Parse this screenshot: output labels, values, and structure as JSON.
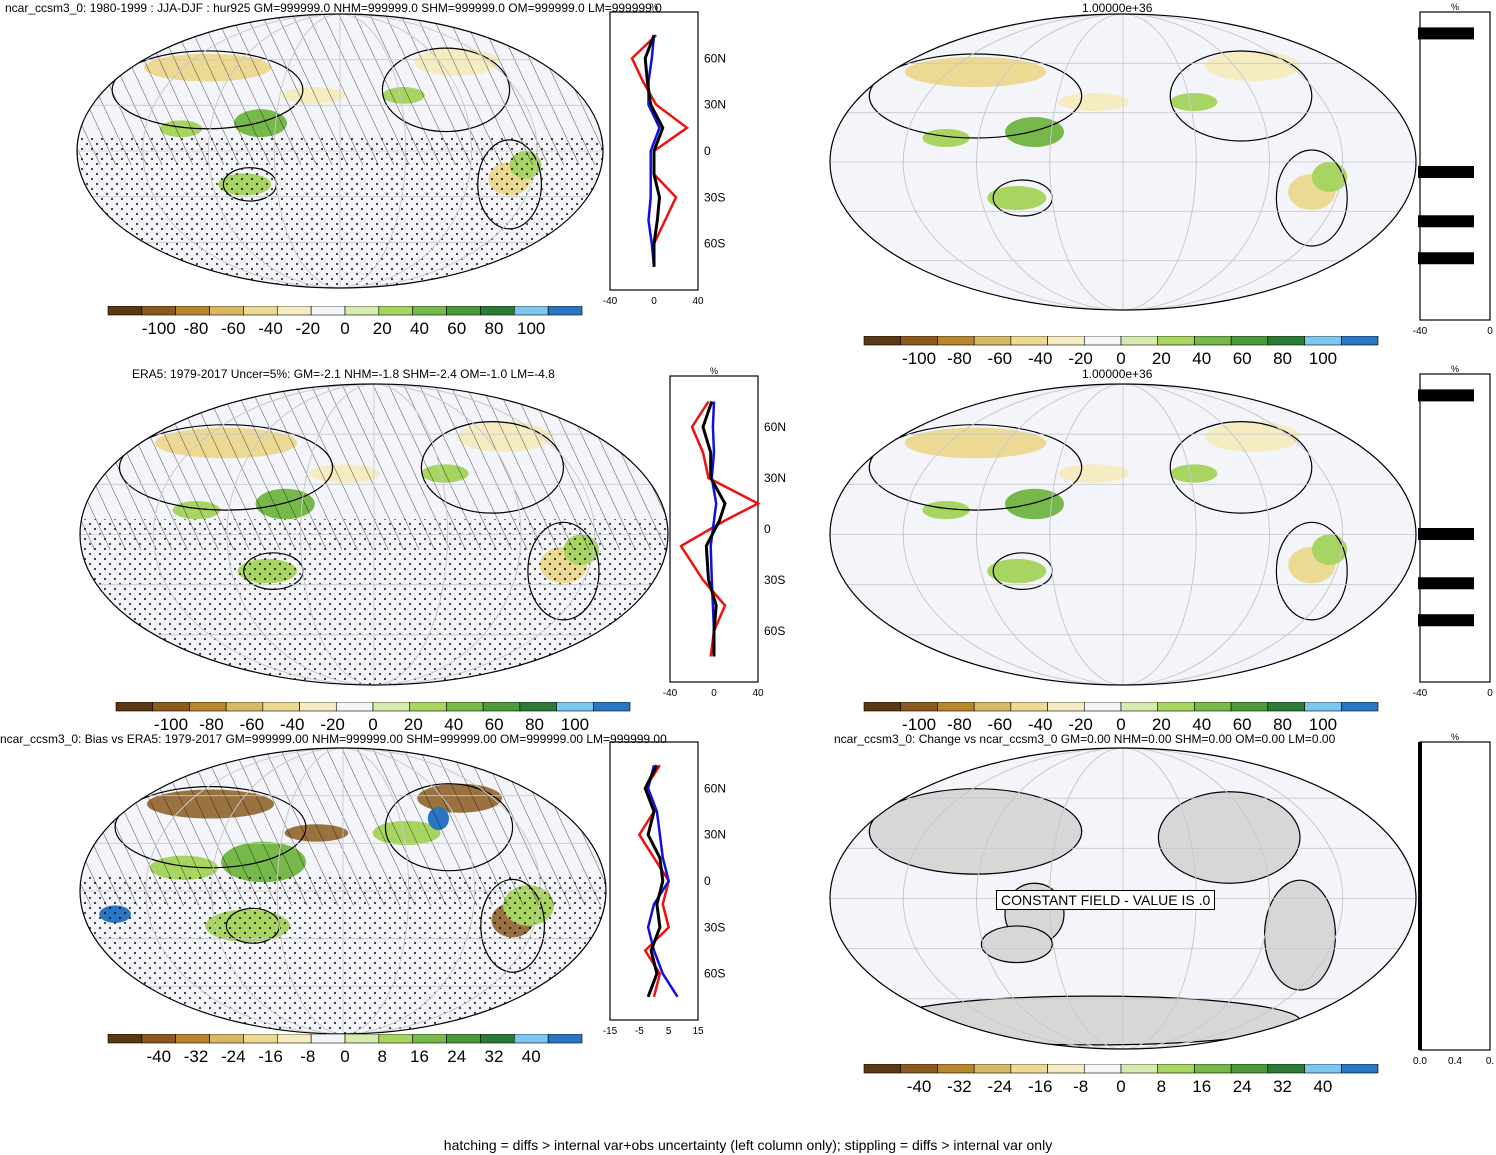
{
  "footer": "hatching = diffs > internal var+obs uncertainty (left column only); stippling = diffs > internal var only",
  "colors": {
    "palette12": [
      "#5a3814",
      "#8a5a1e",
      "#b8862e",
      "#d9b865",
      "#ecd994",
      "#f6ecc2",
      "#f3f5f8",
      "#d7ebb0",
      "#a8d561",
      "#77b84a",
      "#4c9a3c",
      "#2c7a33",
      "#7fc6ef",
      "#2a76c3"
    ],
    "red": "#f01010",
    "blue": "#1010e0",
    "black": "#000000",
    "land_gray": "#d7d7d7"
  },
  "panels": [
    {
      "id": "a",
      "title": "ncar_ccsm3_0: 1980-1999 : JJA-DJF : hur925 GM=999999.0 NHM=999999.0 SHM=999999.0 OM=999999.0 LM=999999.0",
      "colorbar_labels": [
        "-100",
        "-80",
        "-60",
        "-40",
        "-20",
        "0",
        "20",
        "40",
        "60",
        "80",
        "100"
      ],
      "lat_labels": [
        "60N",
        "30N",
        "0",
        "30S",
        "60S"
      ],
      "xaxis_labels": [
        "-40",
        "0",
        "40"
      ],
      "unit": "%"
    },
    {
      "id": "b",
      "title": "1.00000e+36",
      "colorbar_labels": [
        "-100",
        "-80",
        "-60",
        "-40",
        "-20",
        "0",
        "20",
        "40",
        "60",
        "80",
        "100"
      ],
      "xaxis_labels": [
        "-40",
        "0"
      ],
      "unit": "%"
    },
    {
      "id": "c",
      "title": "ERA5: 1979-2017 Uncer=5%: GM=-2.1 NHM=-1.8 SHM=-2.4 OM=-1.0 LM=-4.8",
      "colorbar_labels": [
        "-100",
        "-80",
        "-60",
        "-40",
        "-20",
        "0",
        "20",
        "40",
        "60",
        "80",
        "100"
      ],
      "lat_labels": [
        "60N",
        "30N",
        "0",
        "30S",
        "60S"
      ],
      "xaxis_labels": [
        "-40",
        "0",
        "40"
      ],
      "unit": "%"
    },
    {
      "id": "d",
      "title": "1.00000e+36",
      "colorbar_labels": [
        "-100",
        "-80",
        "-60",
        "-40",
        "-20",
        "0",
        "20",
        "40",
        "60",
        "80",
        "100"
      ],
      "xaxis_labels": [
        "-40",
        "0"
      ],
      "unit": "%"
    },
    {
      "id": "e",
      "title": "ncar_ccsm3_0: Bias vs ERA5: 1979-2017 GM=999999.00 NHM=999999.00 SHM=999999.00 OM=999999.00 LM=999999.00",
      "colorbar_labels": [
        "-40",
        "-32",
        "-24",
        "-16",
        "-8",
        "0",
        "8",
        "16",
        "24",
        "32",
        "40"
      ],
      "lat_labels": [
        "60N",
        "30N",
        "0",
        "30S",
        "60S"
      ],
      "xaxis_labels": [
        "-15",
        "-5",
        "5",
        "15"
      ],
      "unit": ""
    },
    {
      "id": "f",
      "title": "ncar_ccsm3_0: Change vs ncar_ccsm3_0 GM=0.00 NHM=0.00 SHM=0.00 OM=0.00 LM=0.00",
      "colorbar_labels": [
        "-40",
        "-32",
        "-24",
        "-16",
        "-8",
        "0",
        "8",
        "16",
        "24",
        "32",
        "40"
      ],
      "xaxis_labels": [
        "0.0",
        "0.4",
        "0."
      ],
      "unit": "%",
      "constant_note": "CONSTANT FIELD - VALUE IS .0"
    }
  ],
  "chart_data": [
    {
      "type": "line",
      "panel": "a-zonal-mean",
      "y": [
        75,
        60,
        45,
        30,
        15,
        0,
        -15,
        -30,
        -45,
        -60,
        -75
      ],
      "xlim": [
        -40,
        40
      ],
      "series": [
        {
          "values": [
            2,
            -20,
            -10,
            2,
            30,
            0,
            0,
            20,
            10,
            0,
            0
          ]
        },
        {
          "values": [
            0,
            -2,
            -5,
            -5,
            5,
            -3,
            -3,
            -3,
            -5,
            -2,
            0
          ]
        },
        {
          "values": [
            0,
            -8,
            -6,
            -3,
            8,
            0,
            0,
            5,
            3,
            0,
            0
          ]
        }
      ]
    },
    {
      "type": "line",
      "panel": "c-zonal-mean",
      "y": [
        75,
        60,
        45,
        30,
        15,
        5,
        -10,
        -30,
        -45,
        -60,
        -75
      ],
      "xlim": [
        -40,
        40
      ],
      "series": [
        {
          "values": [
            -5,
            -20,
            -10,
            -5,
            40,
            10,
            -30,
            -10,
            10,
            0,
            -3
          ]
        },
        {
          "values": [
            0,
            -1,
            0,
            -2,
            2,
            0,
            -3,
            -2,
            -1,
            0,
            0
          ]
        },
        {
          "values": [
            -2,
            -10,
            -3,
            -3,
            10,
            5,
            -7,
            -5,
            2,
            0,
            0
          ]
        }
      ]
    },
    {
      "type": "line",
      "panel": "e-bias",
      "y": [
        75,
        60,
        45,
        30,
        15,
        0,
        -15,
        -30,
        -45,
        -60,
        -75
      ],
      "xlim": [
        -15,
        15
      ],
      "series": [
        {
          "values": [
            2,
            -3,
            0,
            -5,
            0,
            5,
            3,
            5,
            -3,
            2,
            0
          ]
        },
        {
          "values": [
            0,
            -2,
            1,
            2,
            3,
            5,
            0,
            -2,
            0,
            3,
            8
          ]
        },
        {
          "values": [
            1,
            -3,
            0,
            -2,
            2,
            3,
            1,
            2,
            -1,
            1,
            -2
          ]
        }
      ]
    }
  ]
}
